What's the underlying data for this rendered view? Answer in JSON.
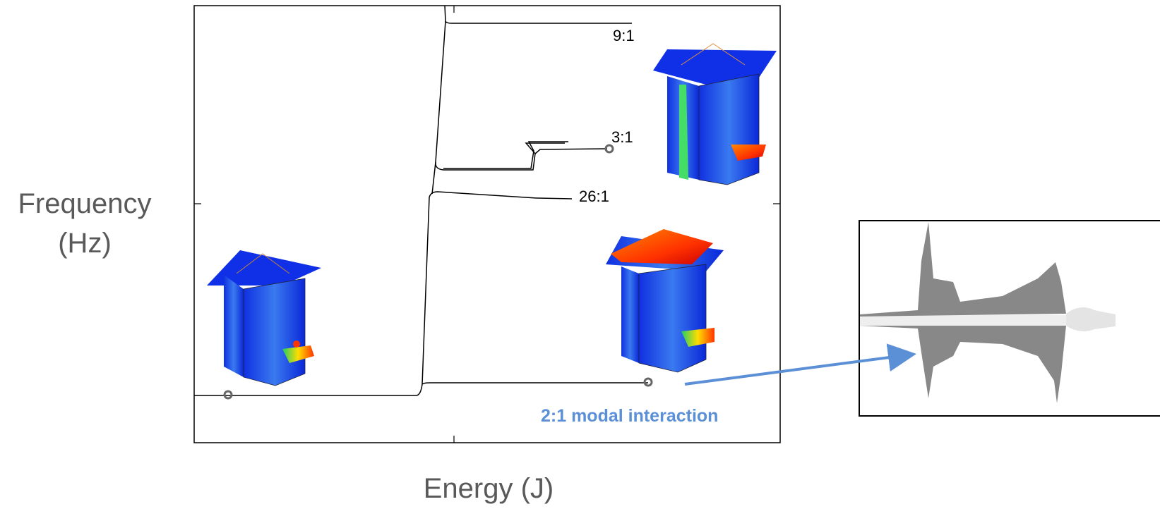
{
  "axes": {
    "x_label": "Energy (J)",
    "y_label_line1": "Frequency",
    "y_label_line2": "(Hz)"
  },
  "branch_labels": [
    "9:1",
    "3:1",
    "26:1"
  ],
  "callout": "2:1 modal interaction"
}
